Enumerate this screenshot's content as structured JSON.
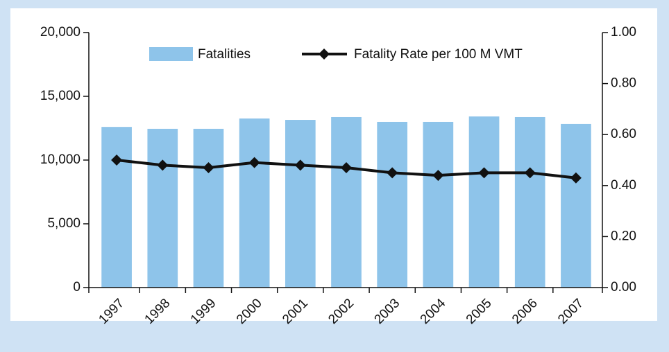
{
  "chart_data": {
    "type": "bar-line",
    "categories": [
      "1997",
      "1998",
      "1999",
      "2000",
      "2001",
      "2002",
      "2003",
      "2004",
      "2005",
      "2006",
      "2007"
    ],
    "series": [
      {
        "name": "Fatalities",
        "type": "bar",
        "color": "#8ec4ea",
        "values": [
          12600,
          12450,
          12450,
          13260,
          13150,
          13370,
          12990,
          12990,
          13420,
          13370,
          12830
        ]
      },
      {
        "name": "Fatality Rate per 100 M VMT",
        "type": "line",
        "axis": "y2",
        "color": "#111111",
        "values": [
          0.5,
          0.48,
          0.47,
          0.49,
          0.48,
          0.47,
          0.45,
          0.44,
          0.45,
          0.45,
          0.43
        ]
      }
    ],
    "ylim": [
      0,
      20000
    ],
    "yticks": [
      0,
      {
        "value": 5000,
        "label": "5,000"
      },
      {
        "value": 10000,
        "label": "10,000"
      },
      {
        "value": 15000,
        "label": "15,000"
      },
      {
        "value": 20000,
        "label": "20,000"
      }
    ],
    "y2lim": [
      0,
      1
    ],
    "y2ticks": [
      {
        "value": 0,
        "label": "0.00"
      },
      {
        "value": 0.2,
        "label": "0.20"
      },
      {
        "value": 0.4,
        "label": "0.40"
      },
      {
        "value": 0.6,
        "label": "0.60"
      },
      {
        "value": 0.8,
        "label": "0.80"
      },
      {
        "value": 1,
        "label": "1.00"
      }
    ]
  }
}
